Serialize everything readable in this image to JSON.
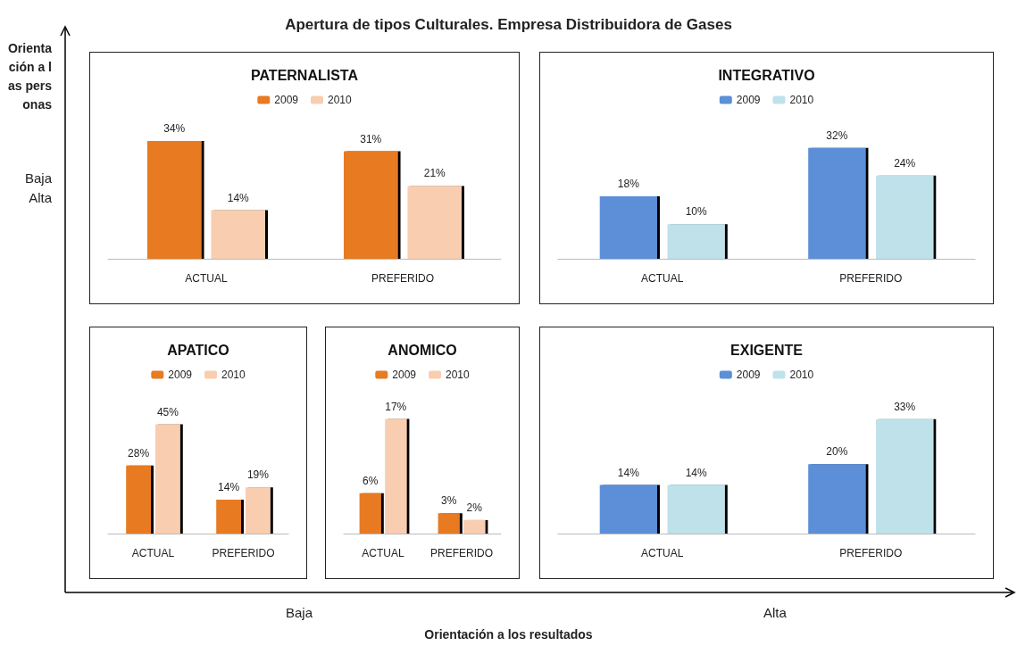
{
  "chart_data": [
    {
      "type": "other",
      "title": "Apertura de tipos Culturales. Empresa Distribuidora de Gases",
      "xlabel": "Orientación a los resultados",
      "ylabel": "Orientación a las personas",
      "annotations": [
        "Baja",
        "Alta",
        "Baja",
        "Alta"
      ]
    },
    {
      "type": "bar",
      "title": "PATERNALISTA",
      "categories": [
        "ACTUAL",
        "PREFERIDO"
      ],
      "legend": "top",
      "series": [
        {
          "name": "2009",
          "color": "#e87a22",
          "values": [
            34,
            31
          ],
          "value_labels": [
            "34%",
            "31%"
          ]
        },
        {
          "name": "2010",
          "color": "#f9cdb0",
          "values": [
            14,
            21
          ],
          "value_labels": [
            "14%",
            "21%"
          ]
        }
      ]
    },
    {
      "type": "bar",
      "title": "INTEGRATIVO",
      "categories": [
        "ACTUAL",
        "PREFERIDO"
      ],
      "legend": "top",
      "series": [
        {
          "name": "2009",
          "color": "#5b8fd8",
          "values": [
            18,
            32
          ],
          "value_labels": [
            "18%",
            "32%"
          ]
        },
        {
          "name": "2010",
          "color": "#bfe2ea",
          "values": [
            10,
            24
          ],
          "value_labels": [
            "10%",
            "24%"
          ]
        }
      ]
    },
    {
      "type": "bar",
      "title": "APATICO",
      "categories": [
        "ACTUAL",
        "PREFERIDO"
      ],
      "legend": "top",
      "series": [
        {
          "name": "2009",
          "color": "#e87a22",
          "values": [
            28,
            14
          ],
          "value_labels": [
            "28%",
            "14%"
          ]
        },
        {
          "name": "2010",
          "color": "#f9cdb0",
          "values": [
            45,
            19
          ],
          "value_labels": [
            "45%",
            "19%"
          ]
        }
      ]
    },
    {
      "type": "bar",
      "title": "ANOMICO",
      "categories": [
        "ACTUAL",
        "PREFERIDO"
      ],
      "legend": "top",
      "series": [
        {
          "name": "2009",
          "color": "#e87a22",
          "values": [
            6,
            3
          ],
          "value_labels": [
            "6%",
            "3%"
          ]
        },
        {
          "name": "2010",
          "color": "#f9cdb0",
          "values": [
            17,
            2
          ],
          "value_labels": [
            "17%",
            "2%"
          ]
        }
      ]
    },
    {
      "type": "bar",
      "title": "EXIGENTE",
      "categories": [
        "ACTUAL",
        "PREFERIDO"
      ],
      "legend": "top",
      "series": [
        {
          "name": "2009",
          "color": "#5b8fd8",
          "values": [
            14,
            20
          ],
          "value_labels": [
            "14%",
            "20%"
          ]
        },
        {
          "name": "2010",
          "color": "#bfe2ea",
          "values": [
            14,
            33
          ],
          "value_labels": [
            "14%",
            "33%"
          ]
        }
      ]
    }
  ]
}
